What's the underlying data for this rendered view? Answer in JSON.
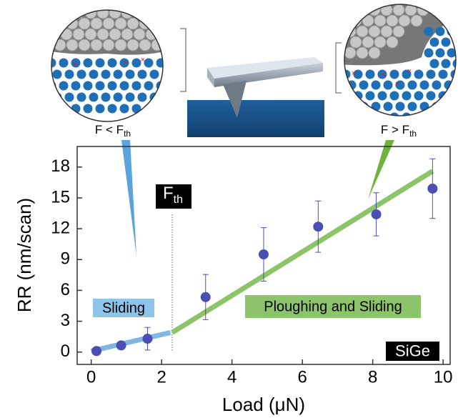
{
  "chart_data": {
    "type": "scatter",
    "xlabel": "Load (μN)",
    "ylabel": "RR (nm/scan)",
    "xlim": [
      -0.4,
      10.2
    ],
    "ylim": [
      -1.2,
      20
    ],
    "xticks": [
      0,
      2,
      4,
      6,
      8,
      10
    ],
    "yticks": [
      0,
      3,
      6,
      9,
      12,
      15,
      18
    ],
    "series": [
      {
        "color": "#4b4fb3",
        "x": [
          0.15,
          0.85,
          1.6,
          3.25,
          4.9,
          6.45,
          8.1,
          9.7
        ],
        "values": [
          0.1,
          0.65,
          1.3,
          5.35,
          9.5,
          12.2,
          13.4,
          15.9
        ],
        "errors": [
          0.2,
          0.3,
          1.1,
          2.2,
          2.6,
          2.5,
          2.1,
          2.9
        ]
      }
    ],
    "fit_lines": [
      {
        "color": "#7fb6e3",
        "x": [
          0,
          2.25
        ],
        "values": [
          0.1,
          1.9
        ]
      },
      {
        "color": "#8cc46a",
        "x": [
          2.3,
          9.7
        ],
        "values": [
          1.9,
          17.6
        ]
      }
    ],
    "threshold_x": 2.3,
    "threshold_label": {
      "text": "F",
      "subscript": "th"
    },
    "annotations": [
      {
        "text": "Sliding",
        "color": "#8ec3ea"
      },
      {
        "text": "Ploughing and Sliding",
        "color": "#8cc46a"
      },
      {
        "text": "SiGe",
        "color": "#000000"
      }
    ],
    "inset_labels": [
      {
        "text": "F < F",
        "subscript": "th"
      },
      {
        "text": "F > F",
        "subscript": "th"
      }
    ]
  }
}
